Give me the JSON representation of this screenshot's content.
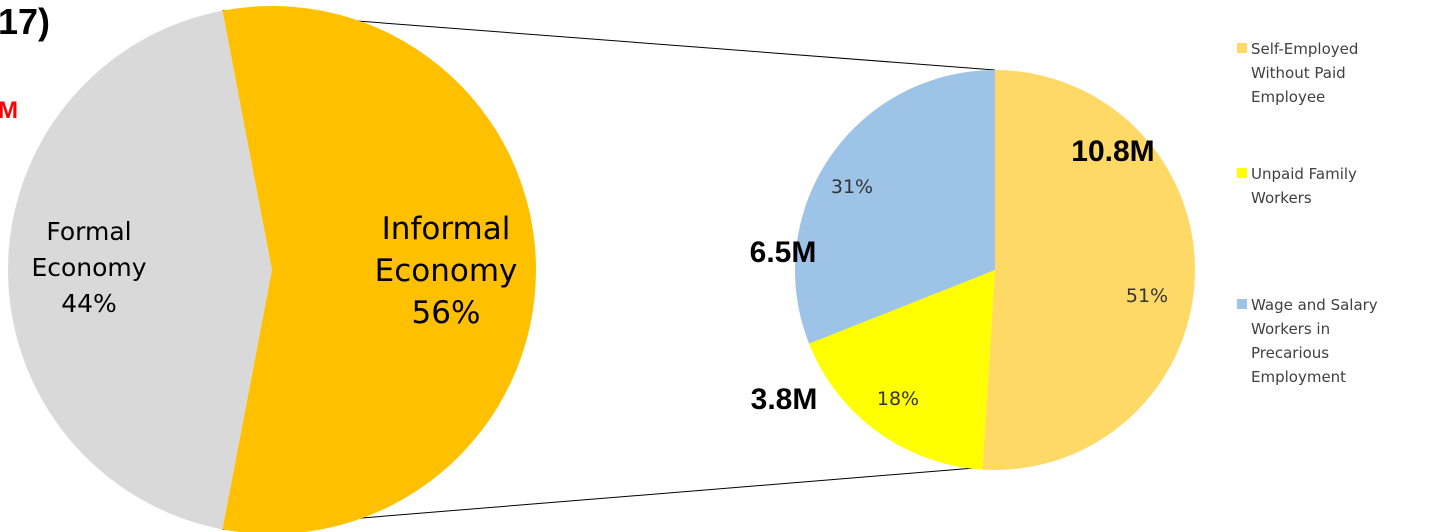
{
  "title_fragment": "17)",
  "total_fragment": "M",
  "colors": {
    "formal": "#d9d9d9",
    "informal": "#ffc000",
    "self_employed": "#ffd966",
    "unpaid_family": "#ffff00",
    "wage_salary": "#9dc3e6",
    "connector": "#000000",
    "total_fragment": "#ff0000"
  },
  "chart_data": [
    {
      "type": "pie",
      "slices": [
        {
          "name": "Formal Economy",
          "label_lines": [
            "Formal",
            "Economy",
            "44%"
          ],
          "value": 44
        },
        {
          "name": "Informal Economy",
          "label_lines": [
            "Informal",
            "Economy",
            "56%"
          ],
          "value": 56
        }
      ]
    },
    {
      "type": "pie",
      "slices": [
        {
          "name": "Self-Employed Without Paid Employee",
          "value": 51,
          "pct_label": "51%",
          "count_label": "10.8M"
        },
        {
          "name": "Unpaid Family Workers",
          "value": 18,
          "pct_label": "18%",
          "count_label": "3.8M"
        },
        {
          "name": "Wage and Salary Workers in Precarious Employment",
          "value": 31,
          "pct_label": "31%",
          "count_label": "6.5M"
        }
      ],
      "legend": [
        {
          "lines": [
            "Self-Employed",
            "Without Paid",
            "Employee"
          ],
          "color_key": "self_employed"
        },
        {
          "lines": [
            "Unpaid Family",
            "Workers"
          ],
          "color_key": "unpaid_family"
        },
        {
          "lines": [
            "Wage and Salary",
            "Workers in",
            "Precarious",
            "Employment"
          ],
          "color_key": "wage_salary"
        }
      ],
      "legend_placement": "right"
    }
  ]
}
